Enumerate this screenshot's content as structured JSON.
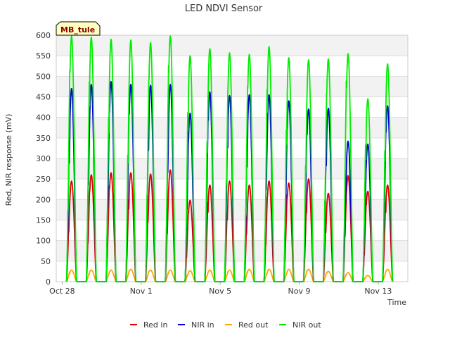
{
  "chart_data": {
    "type": "line",
    "title": "LED NDVI Sensor",
    "xlabel": "Time",
    "ylabel": "Red, NIR response (mV)",
    "badge": "MB_tule",
    "ylim": [
      0,
      600
    ],
    "yticks": [
      0,
      50,
      100,
      150,
      200,
      250,
      300,
      350,
      400,
      450,
      500,
      550,
      600
    ],
    "xlim_days": [
      -0.3,
      17.5
    ],
    "xticks": [
      {
        "label": "Oct 28",
        "day": 0
      },
      {
        "label": "Nov 1",
        "day": 4
      },
      {
        "label": "Nov 5",
        "day": 8
      },
      {
        "label": "Nov 9",
        "day": 12
      },
      {
        "label": "Nov 13",
        "day": 16
      }
    ],
    "grid": true,
    "legend_position": "bottom",
    "day_offset_index_note": "",
    "series": [
      {
        "name": "Red in",
        "color": "#dd0000",
        "daily_peaks": [
          245,
          260,
          265,
          265,
          262,
          272,
          198,
          235,
          245,
          235,
          245,
          240,
          250,
          215,
          258,
          220,
          235
        ]
      },
      {
        "name": "NIR in",
        "color": "#0000cc",
        "daily_peaks": [
          470,
          480,
          487,
          480,
          478,
          480,
          410,
          462,
          453,
          455,
          455,
          440,
          420,
          422,
          342,
          335,
          428
        ]
      },
      {
        "name": "Red out",
        "color": "#ffa500",
        "daily_peaks": [
          28,
          28,
          28,
          30,
          28,
          28,
          27,
          28,
          28,
          30,
          30,
          30,
          30,
          25,
          22,
          15,
          30
        ]
      },
      {
        "name": "NIR out",
        "color": "#00ee00",
        "daily_peaks": [
          598,
          595,
          590,
          588,
          582,
          598,
          550,
          567,
          557,
          553,
          572,
          545,
          540,
          542,
          555,
          445,
          530
        ]
      }
    ]
  }
}
